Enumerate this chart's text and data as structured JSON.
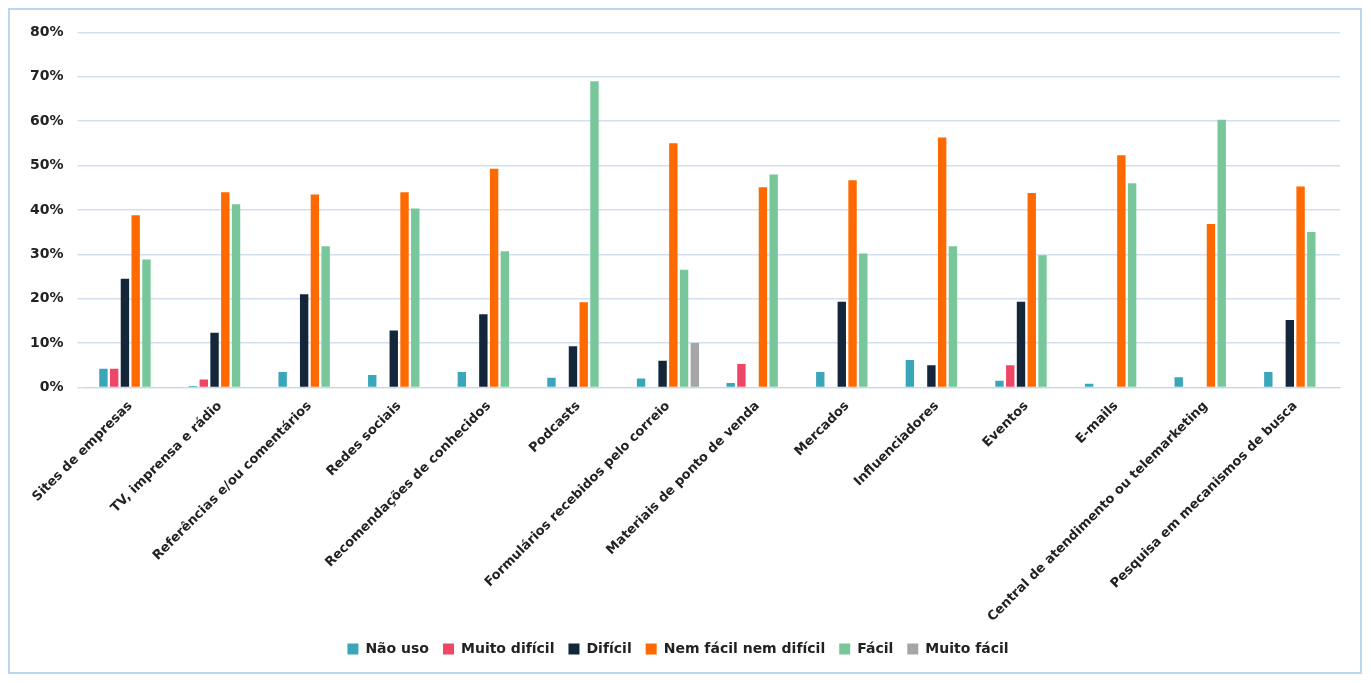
{
  "chart_data": {
    "type": "bar",
    "categories": [
      "Sites de empresas",
      "TV, imprensa e rádio",
      "Referências e/ou comentários",
      "Redes sociais",
      "Recomendações de conhecidos",
      "Podcasts",
      "Formulários recebidos pelo correio",
      "Materiais de ponto de venda",
      "Mercados",
      "Influenciadores",
      "Eventos",
      "E-mails",
      "Central de atendimento ou telemarketing",
      "Pesquisa em mecanismos de busca"
    ],
    "series": [
      {
        "name": "Não uso",
        "color": "#3aa6b9",
        "values": [
          4.2,
          0.3,
          3.5,
          2.8,
          3.5,
          2.2,
          2,
          1,
          3.5,
          6.2,
          1.5,
          0.8,
          2.3,
          3.5
        ]
      },
      {
        "name": "Muito difícil",
        "color": "#ef4668",
        "values": [
          4.2,
          1.8,
          null,
          null,
          null,
          null,
          null,
          5.3,
          null,
          null,
          5,
          null,
          null,
          null
        ]
      },
      {
        "name": "Difícil",
        "color": "#14263a",
        "values": [
          24.5,
          12.3,
          21,
          12.8,
          16.5,
          9.3,
          6,
          null,
          19.3,
          5,
          19.3,
          null,
          null,
          15.2
        ]
      },
      {
        "name": "Nem fácil nem difícil",
        "color": "#ff6a00",
        "values": [
          38.8,
          44,
          43.5,
          44,
          49.3,
          19.2,
          55,
          45.1,
          46.7,
          56.3,
          43.8,
          52.3,
          36.8,
          45.3
        ]
      },
      {
        "name": "Fácil",
        "color": "#78c79a",
        "values": [
          28.8,
          41.3,
          31.8,
          40.3,
          30.7,
          69,
          26.5,
          48,
          30.2,
          31.8,
          29.8,
          46,
          60.3,
          35
        ]
      },
      {
        "name": "Muito fácil",
        "color": "#a6a6a6",
        "values": [
          null,
          null,
          null,
          null,
          null,
          null,
          10,
          null,
          null,
          null,
          null,
          null,
          null,
          null
        ]
      }
    ],
    "ylim": [
      0,
      80
    ],
    "yticks": [
      {
        "value": 0,
        "label": "0%"
      },
      {
        "value": 10,
        "label": "10%"
      },
      {
        "value": 20,
        "label": "20%"
      },
      {
        "value": 30,
        "label": "30%"
      },
      {
        "value": 40,
        "label": "40%"
      },
      {
        "value": 50,
        "label": "50%"
      },
      {
        "value": 60,
        "label": "60%"
      },
      {
        "value": 70,
        "label": "70%"
      },
      {
        "value": 80,
        "label": "80%"
      }
    ],
    "grid": "y",
    "legend": "bottom"
  }
}
